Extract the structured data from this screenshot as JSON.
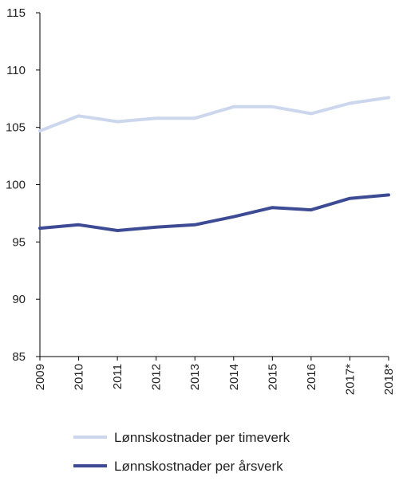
{
  "chart_data": {
    "type": "line",
    "categories": [
      "2009",
      "2010",
      "2011",
      "2012",
      "2013",
      "2014",
      "2015",
      "2016",
      "2017*",
      "2018*"
    ],
    "ylim": [
      85,
      115
    ],
    "yticks": [
      85,
      90,
      95,
      100,
      105,
      110,
      115
    ],
    "grid": false,
    "legend_position": "bottom",
    "series": [
      {
        "name": "Lønnskostnader per timeverk",
        "color": "#ccd7ee",
        "values": [
          104.7,
          106.0,
          105.5,
          105.8,
          105.8,
          106.8,
          106.8,
          106.2,
          107.1,
          107.6
        ]
      },
      {
        "name": "Lønnskostnader per årsverk",
        "color": "#3d4a94",
        "values": [
          96.2,
          96.5,
          96.0,
          96.3,
          96.5,
          97.2,
          98.0,
          97.8,
          98.8,
          99.1
        ]
      }
    ]
  }
}
